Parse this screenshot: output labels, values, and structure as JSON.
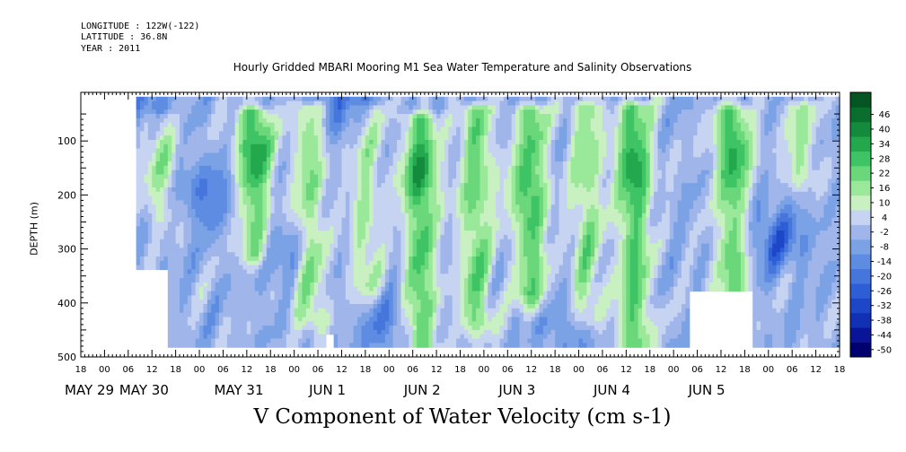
{
  "header": {
    "longitude": "LONGITUDE : 122W(-122)",
    "latitude": "LATITUDE : 36.8N",
    "year": "YEAR : 2011"
  },
  "chart_data": {
    "type": "heatmap",
    "title": "Hourly Gridded MBARI Mooring M1 Sea Water Temperature and Salinity Observations",
    "xlabel": "V Component of Water Velocity (cm s-1)",
    "ylabel": "DEPTH (m)",
    "y_reversed": true,
    "ylim": [
      500,
      10
    ],
    "yticks": [
      100,
      200,
      300,
      400,
      500
    ],
    "xlim_hours": [
      -6,
      186
    ],
    "x_hour_ticks": [
      "18",
      "00",
      "06",
      "12",
      "18",
      "00",
      "06",
      "12",
      "18",
      "00",
      "06",
      "12",
      "18",
      "00",
      "06",
      "12",
      "18",
      "00",
      "06",
      "12",
      "18",
      "00",
      "06",
      "12",
      "18",
      "00",
      "06",
      "12",
      "18",
      "00",
      "06",
      "12",
      "18"
    ],
    "x_day_labels": [
      {
        "label": "MAY 29",
        "hour": -6
      },
      {
        "label": "MAY 30",
        "hour": 6
      },
      {
        "label": "MAY 31",
        "hour": 30
      },
      {
        "label": "JUN  1",
        "hour": 54
      },
      {
        "label": "JUN  2",
        "hour": 78
      },
      {
        "label": "JUN  3",
        "hour": 102
      },
      {
        "label": "JUN  4",
        "hour": 126
      },
      {
        "label": "JUN  5",
        "hour": 150
      }
    ],
    "colorbar": {
      "levels": [
        -50,
        -44,
        -38,
        -32,
        -26,
        -20,
        -14,
        -8,
        -2,
        4,
        10,
        16,
        22,
        28,
        34,
        40,
        46
      ],
      "colors": [
        "#00006e",
        "#0a1496",
        "#1230b4",
        "#1e46c8",
        "#2e5ed6",
        "#4676dc",
        "#5e8ce2",
        "#7ca2e6",
        "#a0b6ea",
        "#c6d4f2",
        "#c8f0c0",
        "#9ae89a",
        "#6ad87a",
        "#3ec464",
        "#24a84e",
        "#148a3c",
        "#0a6e2e",
        "#055424"
      ]
    },
    "data_start_hour": 8,
    "data_end_hour": 186,
    "data_depth_range": [
      18,
      484
    ],
    "jets": [
      {
        "hour": 14,
        "top": 60,
        "bottom": 230,
        "speed": 8
      },
      {
        "hour": 38,
        "top": 50,
        "bottom": 300,
        "speed": 22
      },
      {
        "hour": 52,
        "top": 40,
        "bottom": 420,
        "speed": 14
      },
      {
        "hour": 66,
        "top": 45,
        "bottom": 360,
        "speed": 10
      },
      {
        "hour": 80,
        "top": 60,
        "bottom": 480,
        "speed": 22
      },
      {
        "hour": 94,
        "top": 45,
        "bottom": 430,
        "speed": 18
      },
      {
        "hour": 108,
        "top": 45,
        "bottom": 380,
        "speed": 20
      },
      {
        "hour": 122,
        "top": 40,
        "bottom": 420,
        "speed": 14
      },
      {
        "hour": 134,
        "top": 40,
        "bottom": 480,
        "speed": 22
      },
      {
        "hour": 159,
        "top": 45,
        "bottom": 380,
        "speed": 20
      },
      {
        "hour": 176,
        "top": 40,
        "bottom": 160,
        "speed": 10
      }
    ],
    "cores": [
      {
        "hour": 14,
        "depth": 130,
        "speed": 10
      },
      {
        "hour": 38,
        "depth": 115,
        "speed": 22
      },
      {
        "hour": 80,
        "depth": 165,
        "speed": 24
      },
      {
        "hour": 104,
        "depth": 190,
        "speed": 22
      },
      {
        "hour": 134,
        "depth": 150,
        "speed": 24
      },
      {
        "hour": 159,
        "depth": 120,
        "speed": 22
      }
    ],
    "negative_blobs": [
      {
        "hour": 26,
        "depth": 200,
        "speed": -22
      },
      {
        "hour": 44,
        "depth": 300,
        "speed": -18
      },
      {
        "hour": 72,
        "depth": 450,
        "speed": -18
      },
      {
        "hour": 118,
        "depth": 440,
        "speed": -16
      },
      {
        "hour": 170,
        "depth": 280,
        "speed": -28
      },
      {
        "hour": 60,
        "depth": 30,
        "speed": -26
      },
      {
        "hour": 10,
        "depth": 30,
        "speed": -20
      }
    ],
    "missing_regions": [
      {
        "hour_start": 8,
        "hour_end": 16,
        "depth_start": 340,
        "depth_end": 500
      },
      {
        "hour_start": 56,
        "hour_end": 58,
        "depth_start": 460,
        "depth_end": 500
      },
      {
        "hour_start": 148,
        "hour_end": 164,
        "depth_start": 380,
        "depth_end": 500
      }
    ]
  }
}
